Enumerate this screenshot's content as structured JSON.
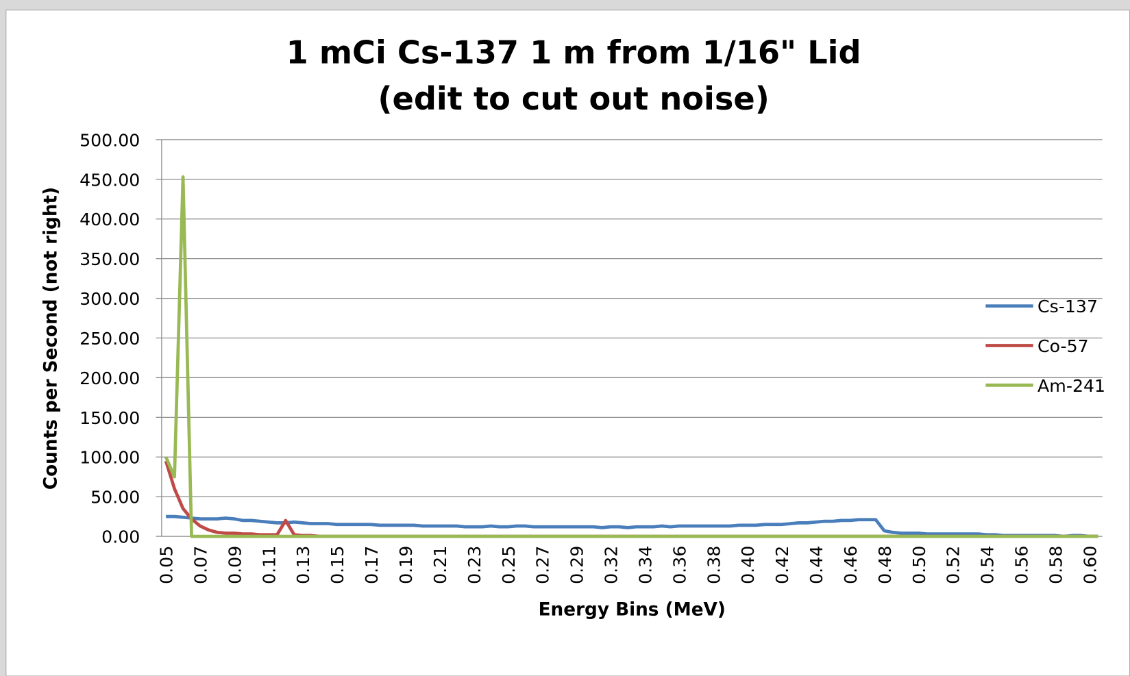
{
  "chart_data": {
    "type": "line",
    "title": [
      "1 mCi Cs-137 1 m from 1/16\" Lid",
      "(edit to cut out noise)"
    ],
    "x_label": "Energy Bins (MeV)",
    "y_label": "Counts per Second (not right)",
    "categories": [
      "0.05",
      null,
      null,
      null,
      "0.07",
      null,
      null,
      null,
      "0.09",
      null,
      null,
      null,
      "0.11",
      null,
      null,
      null,
      "0.13",
      null,
      null,
      null,
      "0.15",
      null,
      null,
      null,
      "0.17",
      null,
      null,
      null,
      "0.19",
      null,
      null,
      null,
      "0.21",
      null,
      null,
      null,
      "0.23",
      null,
      null,
      null,
      "0.25",
      null,
      null,
      null,
      "0.27",
      null,
      null,
      null,
      "0.29",
      null,
      null,
      null,
      "0.32",
      null,
      null,
      null,
      "0.34",
      null,
      null,
      null,
      "0.36",
      null,
      null,
      null,
      "0.38",
      null,
      null,
      null,
      "0.40",
      null,
      null,
      null,
      "0.42",
      null,
      null,
      null,
      "0.44",
      null,
      null,
      null,
      "0.46",
      null,
      null,
      null,
      "0.48",
      null,
      null,
      null,
      "0.50",
      null,
      null,
      null,
      "0.52",
      null,
      null,
      null,
      "0.54",
      null,
      null,
      null,
      "0.56",
      null,
      null,
      null,
      "0.58",
      null,
      null,
      null,
      "0.60",
      null
    ],
    "series": [
      {
        "name": "Cs-137",
        "color": "#4a7ebb",
        "values": [
          25,
          25,
          24,
          23,
          22,
          22,
          22,
          23,
          22,
          20,
          20,
          19,
          18,
          17,
          17,
          18,
          17,
          16,
          16,
          16,
          15,
          15,
          15,
          15,
          15,
          14,
          14,
          14,
          14,
          14,
          13,
          13,
          13,
          13,
          13,
          12,
          12,
          12,
          13,
          12,
          12,
          13,
          13,
          12,
          12,
          12,
          12,
          12,
          12,
          12,
          12,
          11,
          12,
          12,
          11,
          12,
          12,
          12,
          13,
          12,
          13,
          13,
          13,
          13,
          13,
          13,
          13,
          14,
          14,
          14,
          15,
          15,
          15,
          16,
          17,
          17,
          18,
          19,
          19,
          20,
          20,
          21,
          21,
          21,
          7,
          5,
          4,
          4,
          4,
          3,
          3,
          3,
          3,
          3,
          3,
          3,
          2,
          2,
          1,
          1,
          1,
          1,
          1,
          1,
          1,
          0,
          1,
          1,
          0,
          0
        ]
      },
      {
        "name": "Co-57",
        "color": "#be4b48",
        "values": [
          95,
          60,
          35,
          22,
          13,
          8,
          5,
          4,
          4,
          3,
          3,
          2,
          2,
          2,
          20,
          2,
          1,
          1,
          0,
          0,
          0,
          0,
          0,
          0,
          0,
          0,
          0,
          0,
          0,
          0,
          0,
          0,
          0,
          0,
          0,
          0,
          0,
          0,
          0,
          0,
          0,
          0,
          0,
          0,
          0,
          0,
          0,
          0,
          0,
          0,
          0,
          0,
          0,
          0,
          0,
          0,
          0,
          0,
          0,
          0,
          0,
          0,
          0,
          0,
          0,
          0,
          0,
          0,
          0,
          0,
          0,
          0,
          0,
          0,
          0,
          0,
          0,
          0,
          0,
          0,
          0,
          0,
          0,
          0,
          0,
          0,
          0,
          0,
          0,
          0,
          0,
          0,
          0,
          0,
          0,
          0,
          0,
          0,
          0,
          0,
          0,
          0,
          0,
          0,
          0,
          0,
          0,
          0,
          0,
          0
        ]
      },
      {
        "name": "Am-241",
        "color": "#98b954",
        "values": [
          100,
          75,
          453,
          0,
          0,
          0,
          0,
          0,
          0,
          0,
          0,
          0,
          0,
          0,
          0,
          0,
          0,
          0,
          0,
          0,
          0,
          0,
          0,
          0,
          0,
          0,
          0,
          0,
          0,
          0,
          0,
          0,
          0,
          0,
          0,
          0,
          0,
          0,
          0,
          0,
          0,
          0,
          0,
          0,
          0,
          0,
          0,
          0,
          0,
          0,
          0,
          0,
          0,
          0,
          0,
          0,
          0,
          0,
          0,
          0,
          0,
          0,
          0,
          0,
          0,
          0,
          0,
          0,
          0,
          0,
          0,
          0,
          0,
          0,
          0,
          0,
          0,
          0,
          0,
          0,
          0,
          0,
          0,
          0,
          0,
          0,
          0,
          0,
          0,
          0,
          0,
          0,
          0,
          0,
          0,
          0,
          0,
          0,
          0,
          0,
          0,
          0,
          0,
          0,
          0,
          0,
          0,
          0,
          0,
          0
        ]
      }
    ],
    "ylim": [
      0,
      500
    ],
    "yticks": [
      {
        "value": 0,
        "label": "0.00"
      },
      {
        "value": 50,
        "label": "50.00"
      },
      {
        "value": 100,
        "label": "100.00"
      },
      {
        "value": 150,
        "label": "150.00"
      },
      {
        "value": 200,
        "label": "200.00"
      },
      {
        "value": 250,
        "label": "250.00"
      },
      {
        "value": 300,
        "label": "300.00"
      },
      {
        "value": 350,
        "label": "350.00"
      },
      {
        "value": 400,
        "label": "400.00"
      },
      {
        "value": 450,
        "label": "450.00"
      },
      {
        "value": 500,
        "label": "500.00"
      }
    ],
    "grid": true,
    "legend": "right"
  }
}
